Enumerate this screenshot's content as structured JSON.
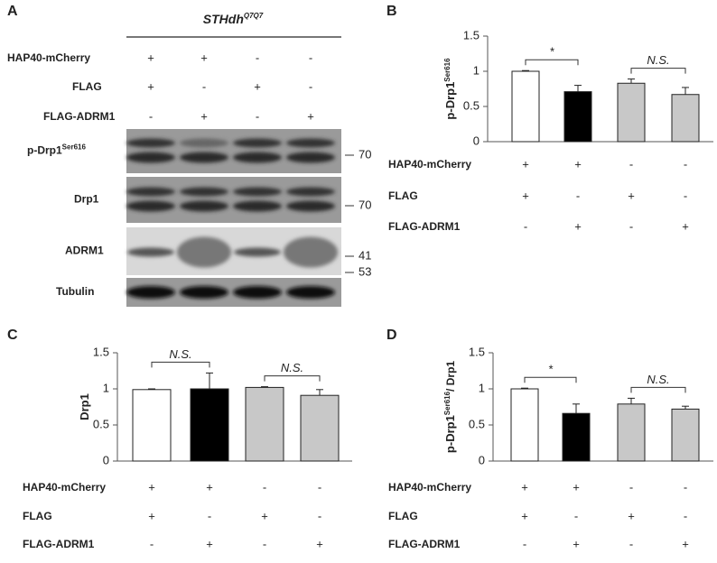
{
  "panel_a": {
    "panel": "A",
    "title": "STHdh",
    "title_sup": "Q7Q7",
    "conditions": [
      {
        "label": "HAP40-mCherry",
        "signs": [
          "+",
          "+",
          "-",
          "-"
        ]
      },
      {
        "label": "FLAG",
        "signs": [
          "+",
          "-",
          "+",
          "-"
        ]
      },
      {
        "label": "FLAG-ADRM1",
        "signs": [
          "-",
          "+",
          "-",
          "+"
        ]
      }
    ],
    "blots": [
      {
        "label": "p-Drp1",
        "label_sup": "Ser616",
        "marker": "70"
      },
      {
        "label": "Drp1",
        "marker": "70"
      },
      {
        "label": "ADRM1",
        "marker": "41"
      },
      {
        "label": "Tubulin",
        "marker": "53"
      }
    ]
  },
  "chart_data": [
    {
      "type": "bar",
      "panel": "B",
      "ylabel": [
        "p-Drp1",
        "Ser616"
      ],
      "values": [
        1.0,
        0.71,
        0.83,
        0.67
      ],
      "errors": [
        0.01,
        0.09,
        0.06,
        0.1
      ],
      "colors": [
        "#ffffff",
        "#000000",
        "#c8c8c8",
        "#c8c8c8"
      ],
      "ylim": [
        0,
        1.5
      ],
      "yticks": [
        0,
        0.5,
        1,
        1.5
      ],
      "annotations": [
        "*",
        "N.S."
      ],
      "conditions": [
        {
          "label": "HAP40-mCherry",
          "signs": [
            "+",
            "+",
            "-",
            "-"
          ]
        },
        {
          "label": "FLAG",
          "signs": [
            "+",
            "-",
            "+",
            "-"
          ]
        },
        {
          "label": "FLAG-ADRM1",
          "signs": [
            "-",
            "+",
            "-",
            "+"
          ]
        }
      ]
    },
    {
      "type": "bar",
      "panel": "C",
      "ylabel": [
        "Drp1"
      ],
      "values": [
        0.99,
        1.0,
        1.02,
        0.91
      ],
      "errors": [
        0.01,
        0.22,
        0.01,
        0.08
      ],
      "colors": [
        "#ffffff",
        "#000000",
        "#c8c8c8",
        "#c8c8c8"
      ],
      "ylim": [
        0,
        1.5
      ],
      "yticks": [
        0,
        0.5,
        1,
        1.5
      ],
      "annotations": [
        "N.S.",
        "N.S."
      ],
      "conditions": [
        {
          "label": "HAP40-mCherry",
          "signs": [
            "+",
            "+",
            "-",
            "-"
          ]
        },
        {
          "label": "FLAG",
          "signs": [
            "+",
            "-",
            "+",
            "-"
          ]
        },
        {
          "label": "FLAG-ADRM1",
          "signs": [
            "-",
            "+",
            "-",
            "+"
          ]
        }
      ]
    },
    {
      "type": "bar",
      "panel": "D",
      "ylabel": [
        "p-Drp1",
        "Ser616",
        "/ Drp1"
      ],
      "values": [
        1.0,
        0.66,
        0.79,
        0.72
      ],
      "errors": [
        0.01,
        0.13,
        0.08,
        0.04
      ],
      "colors": [
        "#ffffff",
        "#000000",
        "#c8c8c8",
        "#c8c8c8"
      ],
      "ylim": [
        0,
        1.5
      ],
      "yticks": [
        0,
        0.5,
        1,
        1.5
      ],
      "annotations": [
        "*",
        "N.S."
      ],
      "conditions": [
        {
          "label": "HAP40-mCherry",
          "signs": [
            "+",
            "+",
            "-",
            "-"
          ]
        },
        {
          "label": "FLAG",
          "signs": [
            "+",
            "-",
            "+",
            "-"
          ]
        },
        {
          "label": "FLAG-ADRM1",
          "signs": [
            "-",
            "+",
            "-",
            "+"
          ]
        }
      ]
    }
  ]
}
